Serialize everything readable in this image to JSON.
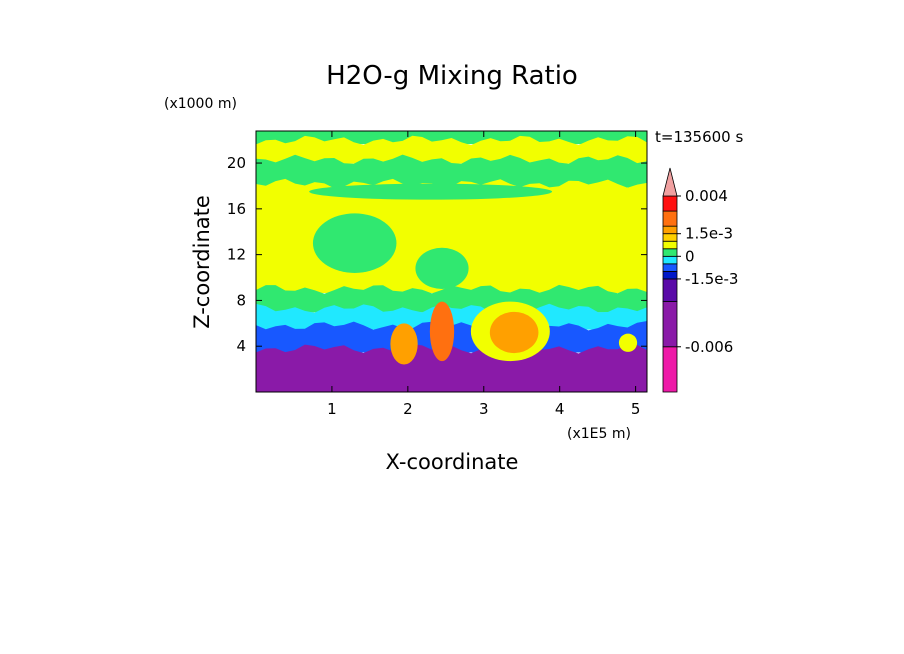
{
  "chart_data": {
    "type": "heatmap",
    "title": "H2O-g Mixing Ratio",
    "time_label": "t=135600 s",
    "xlabel": "X-coordinate",
    "ylabel": "Z-coordinate",
    "x_scale_note": "(x1E5 m)",
    "y_scale_note": "(x1000 m)",
    "x_ticks": [
      "1",
      "2",
      "3",
      "4",
      "5"
    ],
    "y_ticks": [
      "4",
      "8",
      "12",
      "16",
      "20"
    ],
    "x_tick_values": [
      1,
      2,
      3,
      4,
      5
    ],
    "y_tick_values": [
      4,
      8,
      12,
      16,
      20
    ],
    "xlim": [
      0,
      5.15
    ],
    "ylim": [
      0,
      22.8
    ],
    "colorbar": {
      "labels": [
        "0.004",
        "1.5e-3",
        "0",
        "-1.5e-3",
        "-0.006"
      ],
      "label_values": [
        0.004,
        0.0015,
        0,
        -0.0015,
        -0.006
      ],
      "levels": [
        -0.009,
        -0.006,
        -0.003,
        -0.0015,
        -0.001,
        -0.0005,
        0,
        0.0005,
        0.001,
        0.0015,
        0.002,
        0.003,
        0.004
      ],
      "colors": [
        "#ee1aa8",
        "#8a1aa8",
        "#5a0aa8",
        "#0018c8",
        "#1858ff",
        "#20e8ff",
        "#30e870",
        "#f2ff00",
        "#ffd000",
        "#ffa000",
        "#ff7010",
        "#ff1010",
        "#f09090"
      ],
      "extend_top_color": "#f0a0a0"
    },
    "bands": [
      {
        "top": 22.8,
        "bottom": 22.0,
        "color": "#30e870"
      },
      {
        "top": 22.0,
        "bottom": 20.3,
        "color": "#f2ff00"
      },
      {
        "top": 20.3,
        "bottom": 18.2,
        "color": "#30e870"
      },
      {
        "top": 18.2,
        "bottom": 9.0,
        "color": "#f2ff00"
      },
      {
        "top": 9.0,
        "bottom": 7.3,
        "color": "#30e870"
      },
      {
        "top": 7.3,
        "bottom": 5.8,
        "color": "#20e8ff"
      },
      {
        "top": 5.8,
        "bottom": 3.8,
        "color": "#1858ff"
      },
      {
        "top": 3.8,
        "bottom": 0.0,
        "color": "#8a1aa8"
      }
    ],
    "features": [
      {
        "name": "green-streak-upper",
        "cx": 2.3,
        "cy": 17.5,
        "rx": 1.6,
        "ry": 0.7,
        "color": "#30e870"
      },
      {
        "name": "green-tongue-left",
        "cx": 1.3,
        "cy": 13.0,
        "rx": 0.55,
        "ry": 2.6,
        "color": "#30e870"
      },
      {
        "name": "green-tongue-mid",
        "cx": 2.45,
        "cy": 10.8,
        "rx": 0.35,
        "ry": 1.8,
        "color": "#30e870"
      },
      {
        "name": "orange-plume-1",
        "cx": 1.95,
        "cy": 4.2,
        "rx": 0.18,
        "ry": 1.8,
        "color": "#ffa000"
      },
      {
        "name": "orange-plume-2",
        "cx": 2.45,
        "cy": 5.3,
        "rx": 0.16,
        "ry": 2.6,
        "color": "#ff7010"
      },
      {
        "name": "yellow-plume-center",
        "cx": 3.35,
        "cy": 5.3,
        "rx": 0.52,
        "ry": 2.6,
        "color": "#f2ff00"
      },
      {
        "name": "orange-plume-center",
        "cx": 3.4,
        "cy": 5.2,
        "rx": 0.32,
        "ry": 1.8,
        "color": "#ffa000"
      },
      {
        "name": "yellow-plume-right",
        "cx": 4.9,
        "cy": 4.3,
        "rx": 0.12,
        "ry": 0.8,
        "color": "#f2ff00"
      }
    ]
  }
}
